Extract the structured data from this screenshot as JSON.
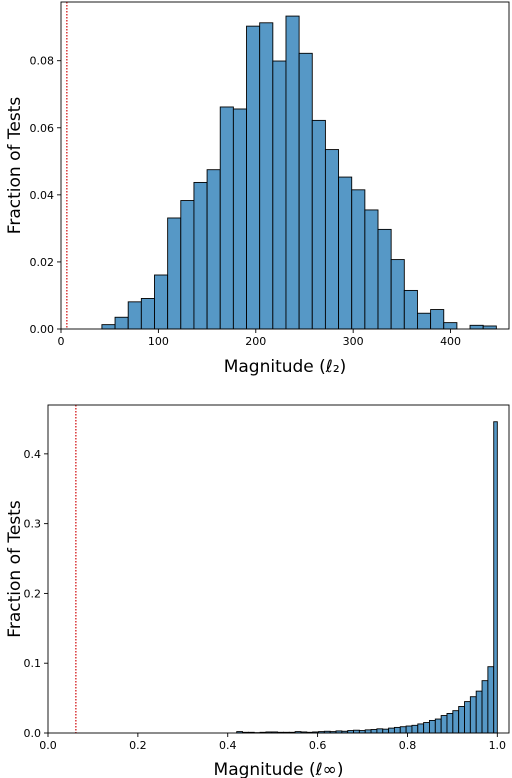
{
  "chart_data": [
    {
      "type": "bar",
      "xlabel": "Magnitude (ℓ₂)",
      "ylabel": "Fraction of Tests",
      "xlim": [
        0,
        460
      ],
      "ylim": [
        0,
        0.0975
      ],
      "xticks": [
        0,
        100,
        200,
        300,
        400
      ],
      "xtick_labels": [
        "0",
        "100",
        "200",
        "300",
        "400"
      ],
      "yticks": [
        0.0,
        0.02,
        0.04,
        0.06,
        0.08
      ],
      "ytick_labels": [
        "0.00",
        "0.02",
        "0.04",
        "0.06",
        "0.08"
      ],
      "grid": false,
      "bar_color": "#5698c6",
      "bin_edges": [
        42,
        55.5,
        69,
        82.5,
        96,
        109.5,
        123,
        136.5,
        150,
        163.5,
        177,
        190.5,
        204,
        217.5,
        231,
        244.5,
        258,
        271.5,
        285,
        298.5,
        312,
        325.5,
        339,
        352.5,
        366,
        379.5,
        393,
        406.5,
        420,
        433.5,
        447
      ],
      "values": [
        0.0013,
        0.0035,
        0.0081,
        0.0091,
        0.0161,
        0.0331,
        0.0383,
        0.0437,
        0.0475,
        0.0662,
        0.0656,
        0.0903,
        0.0913,
        0.0799,
        0.0933,
        0.0822,
        0.0622,
        0.0535,
        0.0453,
        0.0415,
        0.0355,
        0.0297,
        0.0207,
        0.0115,
        0.0047,
        0.0058,
        0.0019,
        0.0,
        0.0011,
        0.0009,
        0.0012
      ],
      "reference_line": {
        "x": 6,
        "style": "dotted",
        "color": "#d62728"
      }
    },
    {
      "type": "bar",
      "xlabel": "Magnitude (ℓ∞)",
      "ylabel": "Fraction of Tests",
      "xlim": [
        0,
        1.026
      ],
      "ylim": [
        0,
        0.47
      ],
      "xticks": [
        0.0,
        0.2,
        0.4,
        0.6,
        0.8,
        1.0
      ],
      "xtick_labels": [
        "0.0",
        "0.2",
        "0.4",
        "0.6",
        "0.8",
        "1.0"
      ],
      "yticks": [
        0.0,
        0.1,
        0.2,
        0.3,
        0.4
      ],
      "ytick_labels": [
        "0.0",
        "0.1",
        "0.2",
        "0.3",
        "0.4"
      ],
      "grid": false,
      "bar_color": "#5698c6",
      "bin_edges": [
        0.42,
        0.433,
        0.446,
        0.459,
        0.472,
        0.485,
        0.498,
        0.511,
        0.524,
        0.537,
        0.55,
        0.563,
        0.576,
        0.589,
        0.602,
        0.615,
        0.628,
        0.641,
        0.654,
        0.667,
        0.68,
        0.693,
        0.706,
        0.719,
        0.732,
        0.745,
        0.758,
        0.771,
        0.784,
        0.797,
        0.81,
        0.823,
        0.836,
        0.849,
        0.862,
        0.875,
        0.888,
        0.901,
        0.914,
        0.927,
        0.94,
        0.953,
        0.966,
        0.979,
        0.992,
        1.0
      ],
      "values": [
        0.002,
        0.001,
        0.001,
        0.0005,
        0.001,
        0.0015,
        0.0015,
        0.001,
        0.001,
        0.001,
        0.002,
        0.0015,
        0.001,
        0.0015,
        0.002,
        0.0025,
        0.002,
        0.003,
        0.0025,
        0.0035,
        0.004,
        0.0035,
        0.0045,
        0.005,
        0.006,
        0.0055,
        0.007,
        0.008,
        0.009,
        0.01,
        0.011,
        0.013,
        0.015,
        0.018,
        0.02,
        0.025,
        0.028,
        0.032,
        0.038,
        0.045,
        0.052,
        0.06,
        0.075,
        0.095,
        0.446
      ],
      "reference_line": {
        "x": 0.062,
        "style": "dotted",
        "color": "#d62728"
      }
    }
  ]
}
